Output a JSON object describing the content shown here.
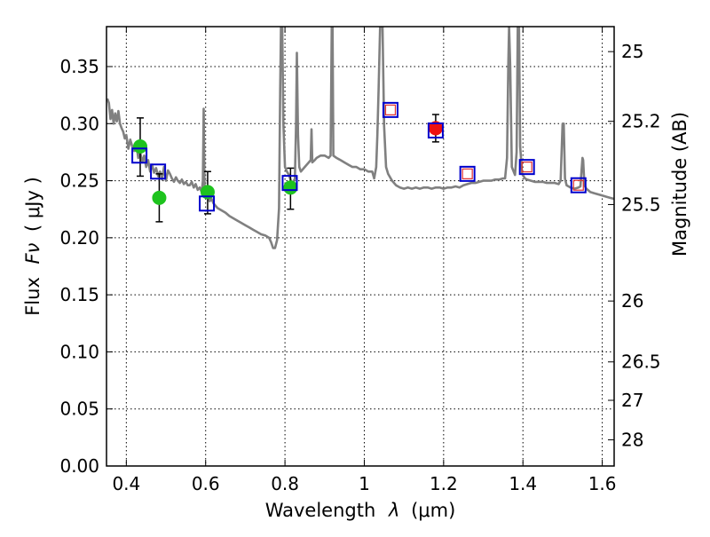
{
  "chart_data": {
    "type": "scatter",
    "xlabel_prefix": "Wavelength",
    "xlabel_symbol": "λ",
    "xlabel_unit": "(μm)",
    "ylabel_prefix": "Flux",
    "ylabel_symbol": "Fν",
    "ylabel_unit": "( μJy )",
    "y2label": "Magnitude (AB)",
    "xlim": [
      0.35,
      1.63
    ],
    "ylim": [
      0.0,
      0.385
    ],
    "grid": true,
    "x_ticks": [
      {
        "value": 0.4,
        "label": "0.4"
      },
      {
        "value": 0.6,
        "label": "0.6"
      },
      {
        "value": 0.8,
        "label": "0.8"
      },
      {
        "value": 1.0,
        "label": "1"
      },
      {
        "value": 1.2,
        "label": "1.2"
      },
      {
        "value": 1.4,
        "label": "1.4"
      },
      {
        "value": 1.6,
        "label": "1.6"
      }
    ],
    "y_ticks": [
      {
        "value": 0.0,
        "label": "0.00"
      },
      {
        "value": 0.05,
        "label": "0.05"
      },
      {
        "value": 0.1,
        "label": "0.10"
      },
      {
        "value": 0.15,
        "label": "0.15"
      },
      {
        "value": 0.2,
        "label": "0.20"
      },
      {
        "value": 0.25,
        "label": "0.25"
      },
      {
        "value": 0.3,
        "label": "0.30"
      },
      {
        "value": 0.35,
        "label": "0.35"
      }
    ],
    "y2_ticks": [
      {
        "value": 25,
        "label": "25"
      },
      {
        "value": 25.2,
        "label": "25.2"
      },
      {
        "value": 25.5,
        "label": "25.5"
      },
      {
        "value": 26,
        "label": "26"
      },
      {
        "value": 26.5,
        "label": "26.5"
      },
      {
        "value": 27,
        "label": "27"
      },
      {
        "value": 28,
        "label": "28"
      }
    ],
    "model_spectrum": {
      "color": "#808080",
      "points": [
        [
          0.352,
          0.322
        ],
        [
          0.356,
          0.318
        ],
        [
          0.36,
          0.304
        ],
        [
          0.364,
          0.312
        ],
        [
          0.368,
          0.3
        ],
        [
          0.372,
          0.309
        ],
        [
          0.376,
          0.302
        ],
        [
          0.38,
          0.311
        ],
        [
          0.384,
          0.3
        ],
        [
          0.388,
          0.296
        ],
        [
          0.392,
          0.293
        ],
        [
          0.396,
          0.287
        ],
        [
          0.4,
          0.29
        ],
        [
          0.405,
          0.278
        ],
        [
          0.41,
          0.286
        ],
        [
          0.415,
          0.28
        ],
        [
          0.42,
          0.276
        ],
        [
          0.425,
          0.282
        ],
        [
          0.43,
          0.27
        ],
        [
          0.435,
          0.275
        ],
        [
          0.44,
          0.266
        ],
        [
          0.445,
          0.272
        ],
        [
          0.45,
          0.262
        ],
        [
          0.455,
          0.268
        ],
        [
          0.46,
          0.258
        ],
        [
          0.465,
          0.264
        ],
        [
          0.47,
          0.257
        ],
        [
          0.475,
          0.261
        ],
        [
          0.48,
          0.254
        ],
        [
          0.485,
          0.258
        ],
        [
          0.49,
          0.251
        ],
        [
          0.495,
          0.262
        ],
        [
          0.5,
          0.25
        ],
        [
          0.505,
          0.259
        ],
        [
          0.51,
          0.256
        ],
        [
          0.515,
          0.252
        ],
        [
          0.52,
          0.249
        ],
        [
          0.525,
          0.253
        ],
        [
          0.53,
          0.25
        ],
        [
          0.535,
          0.248
        ],
        [
          0.54,
          0.251
        ],
        [
          0.545,
          0.247
        ],
        [
          0.55,
          0.249
        ],
        [
          0.555,
          0.246
        ],
        [
          0.56,
          0.246
        ],
        [
          0.565,
          0.249
        ],
        [
          0.57,
          0.244
        ],
        [
          0.575,
          0.247
        ],
        [
          0.58,
          0.242
        ],
        [
          0.585,
          0.244
        ],
        [
          0.59,
          0.24
        ],
        [
          0.593,
          0.25
        ],
        [
          0.595,
          0.313
        ],
        [
          0.597,
          0.248
        ],
        [
          0.6,
          0.236
        ],
        [
          0.605,
          0.238
        ],
        [
          0.61,
          0.232
        ],
        [
          0.615,
          0.234
        ],
        [
          0.62,
          0.23
        ],
        [
          0.625,
          0.228
        ],
        [
          0.63,
          0.226
        ],
        [
          0.64,
          0.224
        ],
        [
          0.65,
          0.222
        ],
        [
          0.66,
          0.219
        ],
        [
          0.67,
          0.217
        ],
        [
          0.68,
          0.215
        ],
        [
          0.69,
          0.213
        ],
        [
          0.7,
          0.211
        ],
        [
          0.71,
          0.209
        ],
        [
          0.72,
          0.207
        ],
        [
          0.73,
          0.205
        ],
        [
          0.74,
          0.203
        ],
        [
          0.75,
          0.202
        ],
        [
          0.76,
          0.2
        ],
        [
          0.765,
          0.196
        ],
        [
          0.77,
          0.191
        ],
        [
          0.775,
          0.191
        ],
        [
          0.78,
          0.198
        ],
        [
          0.785,
          0.226
        ],
        [
          0.788,
          0.33
        ],
        [
          0.79,
          0.385
        ],
        [
          0.793,
          0.385
        ],
        [
          0.796,
          0.3
        ],
        [
          0.8,
          0.262
        ],
        [
          0.805,
          0.258
        ],
        [
          0.81,
          0.255
        ],
        [
          0.815,
          0.25
        ],
        [
          0.82,
          0.248
        ],
        [
          0.825,
          0.252
        ],
        [
          0.828,
          0.3
        ],
        [
          0.83,
          0.362
        ],
        [
          0.833,
          0.29
        ],
        [
          0.836,
          0.262
        ],
        [
          0.84,
          0.258
        ],
        [
          0.85,
          0.262
        ],
        [
          0.86,
          0.266
        ],
        [
          0.865,
          0.268
        ],
        [
          0.867,
          0.295
        ],
        [
          0.869,
          0.266
        ],
        [
          0.875,
          0.268
        ],
        [
          0.88,
          0.27
        ],
        [
          0.89,
          0.272
        ],
        [
          0.9,
          0.272
        ],
        [
          0.91,
          0.27
        ],
        [
          0.915,
          0.272
        ],
        [
          0.918,
          0.385
        ],
        [
          0.92,
          0.385
        ],
        [
          0.922,
          0.272
        ],
        [
          0.93,
          0.27
        ],
        [
          0.94,
          0.268
        ],
        [
          0.95,
          0.266
        ],
        [
          0.96,
          0.264
        ],
        [
          0.97,
          0.262
        ],
        [
          0.98,
          0.262
        ],
        [
          0.99,
          0.26
        ],
        [
          1.0,
          0.26
        ],
        [
          1.01,
          0.258
        ],
        [
          1.02,
          0.258
        ],
        [
          1.025,
          0.252
        ],
        [
          1.03,
          0.262
        ],
        [
          1.033,
          0.29
        ],
        [
          1.036,
          0.33
        ],
        [
          1.04,
          0.385
        ],
        [
          1.046,
          0.385
        ],
        [
          1.05,
          0.298
        ],
        [
          1.055,
          0.262
        ],
        [
          1.06,
          0.256
        ],
        [
          1.07,
          0.25
        ],
        [
          1.08,
          0.246
        ],
        [
          1.09,
          0.244
        ],
        [
          1.1,
          0.243
        ],
        [
          1.11,
          0.244
        ],
        [
          1.12,
          0.243
        ],
        [
          1.13,
          0.244
        ],
        [
          1.14,
          0.243
        ],
        [
          1.15,
          0.244
        ],
        [
          1.16,
          0.244
        ],
        [
          1.17,
          0.243
        ],
        [
          1.18,
          0.244
        ],
        [
          1.19,
          0.244
        ],
        [
          1.2,
          0.243
        ],
        [
          1.21,
          0.244
        ],
        [
          1.22,
          0.244
        ],
        [
          1.23,
          0.245
        ],
        [
          1.24,
          0.244
        ],
        [
          1.25,
          0.246
        ],
        [
          1.26,
          0.247
        ],
        [
          1.27,
          0.248
        ],
        [
          1.28,
          0.248
        ],
        [
          1.29,
          0.249
        ],
        [
          1.3,
          0.25
        ],
        [
          1.31,
          0.25
        ],
        [
          1.32,
          0.25
        ],
        [
          1.33,
          0.251
        ],
        [
          1.34,
          0.251
        ],
        [
          1.35,
          0.252
        ],
        [
          1.355,
          0.252
        ],
        [
          1.36,
          0.27
        ],
        [
          1.363,
          0.35
        ],
        [
          1.365,
          0.385
        ],
        [
          1.368,
          0.35
        ],
        [
          1.372,
          0.262
        ],
        [
          1.38,
          0.255
        ],
        [
          1.384,
          0.275
        ],
        [
          1.387,
          0.385
        ],
        [
          1.39,
          0.385
        ],
        [
          1.393,
          0.28
        ],
        [
          1.398,
          0.256
        ],
        [
          1.405,
          0.252
        ],
        [
          1.41,
          0.251
        ],
        [
          1.42,
          0.25
        ],
        [
          1.43,
          0.249
        ],
        [
          1.44,
          0.249
        ],
        [
          1.45,
          0.249
        ],
        [
          1.46,
          0.248
        ],
        [
          1.47,
          0.248
        ],
        [
          1.48,
          0.248
        ],
        [
          1.49,
          0.247
        ],
        [
          1.495,
          0.25
        ],
        [
          1.5,
          0.3
        ],
        [
          1.503,
          0.3
        ],
        [
          1.506,
          0.252
        ],
        [
          1.51,
          0.246
        ],
        [
          1.52,
          0.244
        ],
        [
          1.53,
          0.243
        ],
        [
          1.54,
          0.244
        ],
        [
          1.545,
          0.245
        ],
        [
          1.55,
          0.27
        ],
        [
          1.552,
          0.268
        ],
        [
          1.555,
          0.246
        ],
        [
          1.56,
          0.243
        ],
        [
          1.57,
          0.24
        ],
        [
          1.58,
          0.239
        ],
        [
          1.59,
          0.238
        ],
        [
          1.6,
          0.237
        ],
        [
          1.61,
          0.236
        ],
        [
          1.62,
          0.235
        ],
        [
          1.63,
          0.234
        ]
      ]
    },
    "observed_green": [
      {
        "x": 0.435,
        "y": 0.28,
        "yerr": [
          0.254,
          0.305
        ]
      },
      {
        "x": 0.483,
        "y": 0.235,
        "yerr": [
          0.214,
          0.256
        ]
      },
      {
        "x": 0.605,
        "y": 0.24,
        "yerr": [
          0.221,
          0.258
        ]
      },
      {
        "x": 0.814,
        "y": 0.244,
        "yerr": [
          0.225,
          0.261
        ]
      }
    ],
    "observed_red": [
      {
        "x": 1.18,
        "y": 0.296,
        "yerr": [
          0.284,
          0.308
        ]
      }
    ],
    "model_photometry": [
      {
        "x": 0.433,
        "y": 0.272,
        "color": "#0000cc"
      },
      {
        "x": 0.48,
        "y": 0.258,
        "color": "#0000cc"
      },
      {
        "x": 0.603,
        "y": 0.23,
        "color": "#0000cc"
      },
      {
        "x": 0.812,
        "y": 0.248,
        "color": "#0000cc"
      },
      {
        "x": 1.066,
        "y": 0.312,
        "color": "#0000cc"
      },
      {
        "x": 1.18,
        "y": 0.294,
        "color": "#0000cc"
      },
      {
        "x": 1.26,
        "y": 0.256,
        "color": "#0000cc"
      },
      {
        "x": 1.41,
        "y": 0.262,
        "color": "#0000cc"
      },
      {
        "x": 1.54,
        "y": 0.246,
        "color": "#0000cc"
      }
    ],
    "model_photometry_inner": [
      {
        "x": 1.066,
        "y": 0.312,
        "color": "#e03030"
      },
      {
        "x": 1.26,
        "y": 0.256,
        "color": "#e03030"
      },
      {
        "x": 1.41,
        "y": 0.262,
        "color": "#e03030"
      },
      {
        "x": 1.54,
        "y": 0.246,
        "color": "#e03030"
      }
    ],
    "colors": {
      "green": "#1ec31e",
      "red": "#ee1111",
      "errorbar": "#000000"
    }
  }
}
